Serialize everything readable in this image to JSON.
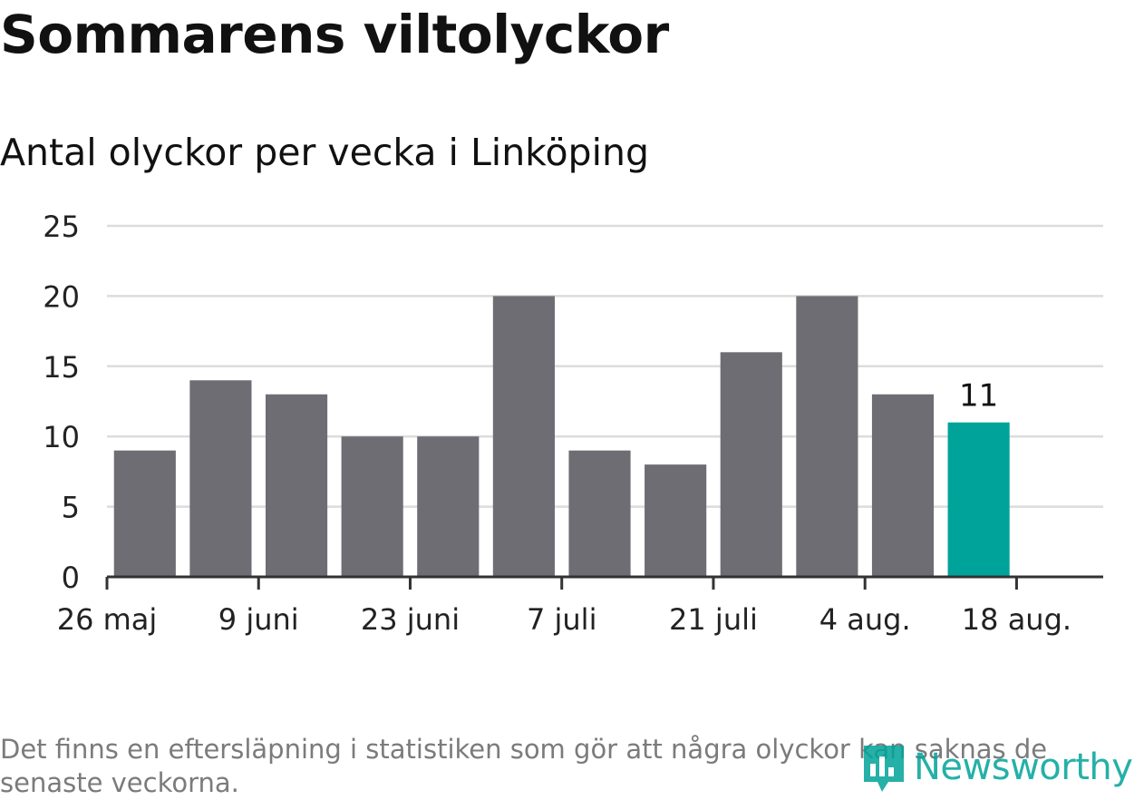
{
  "header": {
    "title": "Sommarens viltolyckor",
    "subtitle": "Antal olyckor per vecka i Linköping"
  },
  "footer": {
    "note": "Det finns en eftersläpning i statistiken som gör att några olyckor kan saknas de senaste veckorna.",
    "logo_text": "Newsworthy"
  },
  "colors": {
    "bar": "#6e6d73",
    "highlight": "#00a39a",
    "grid": "#dcdcdc",
    "axis": "#333333"
  },
  "chart_data": {
    "type": "bar",
    "title": "Sommarens viltolyckor",
    "subtitle": "Antal olyckor per vecka i Linköping",
    "xlabel": "",
    "ylabel": "",
    "ylim": [
      0,
      25
    ],
    "yticks": [
      0,
      5,
      10,
      15,
      20,
      25
    ],
    "xlim": [
      "2024-05-26",
      "2024-08-26"
    ],
    "xtick_labels": [
      "26 maj",
      "9 juni",
      "23 juni",
      "7 juli",
      "21 juli",
      "4 aug.",
      "18 aug."
    ],
    "xticks": [
      "2024-05-26",
      "2024-06-09",
      "2024-06-23",
      "2024-07-07",
      "2024-07-21",
      "2024-08-04",
      "2024-08-18"
    ],
    "x": [
      "2024-06-02",
      "2024-06-09",
      "2024-06-16",
      "2024-06-23",
      "2024-06-30",
      "2024-07-07",
      "2024-07-14",
      "2024-07-21",
      "2024-07-28",
      "2024-08-04",
      "2024-08-11",
      "2024-08-18"
    ],
    "values": [
      9,
      14,
      13,
      10,
      10,
      20,
      9,
      8,
      16,
      20,
      13,
      11
    ],
    "highlight_last": true,
    "data_labels": [
      {
        "index": 11,
        "text": "11"
      }
    ],
    "grid": true
  }
}
